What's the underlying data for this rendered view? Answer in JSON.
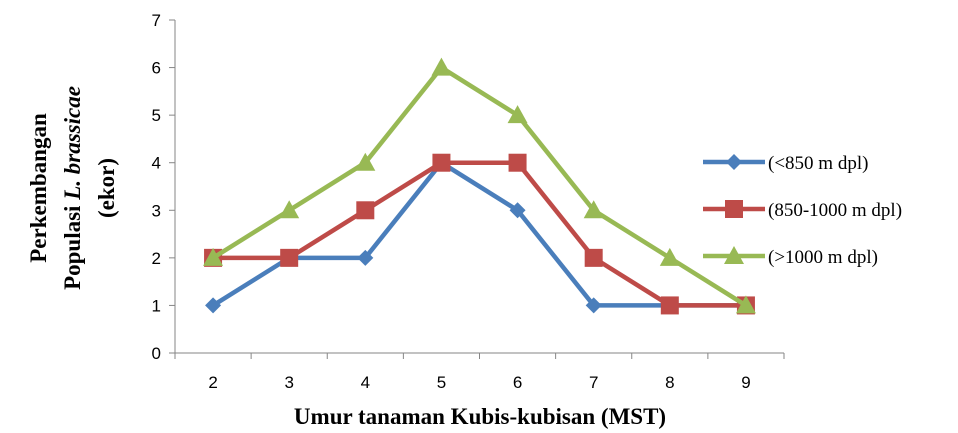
{
  "chart_data": {
    "type": "line",
    "x": [
      2,
      3,
      4,
      5,
      6,
      7,
      8,
      9
    ],
    "xlabel": "Umur tanaman Kubis-kubisan (MST)",
    "ylabel": {
      "line1": "Perkembangan",
      "line2_prefix": "Populasi ",
      "line2_italic": "L. brassicae",
      "line3": "(ekor)"
    },
    "ylim": [
      0,
      7
    ],
    "yticks": [
      0,
      1,
      2,
      3,
      4,
      5,
      6,
      7
    ],
    "grid": false,
    "legend_position": "right",
    "series": [
      {
        "name": "(<850 m dpl)",
        "values": [
          1,
          2,
          2,
          4,
          3,
          1,
          1,
          1
        ],
        "color": "#4a7ebb",
        "marker": "diamond"
      },
      {
        "name": "(850-1000 m dpl)",
        "values": [
          2,
          2,
          3,
          4,
          4,
          2,
          1,
          1
        ],
        "color": "#be4b48",
        "marker": "square"
      },
      {
        "name": "(>1000 m dpl)",
        "values": [
          2,
          3,
          4,
          6,
          5,
          3,
          2,
          1
        ],
        "color": "#98b954",
        "marker": "triangle"
      }
    ]
  }
}
